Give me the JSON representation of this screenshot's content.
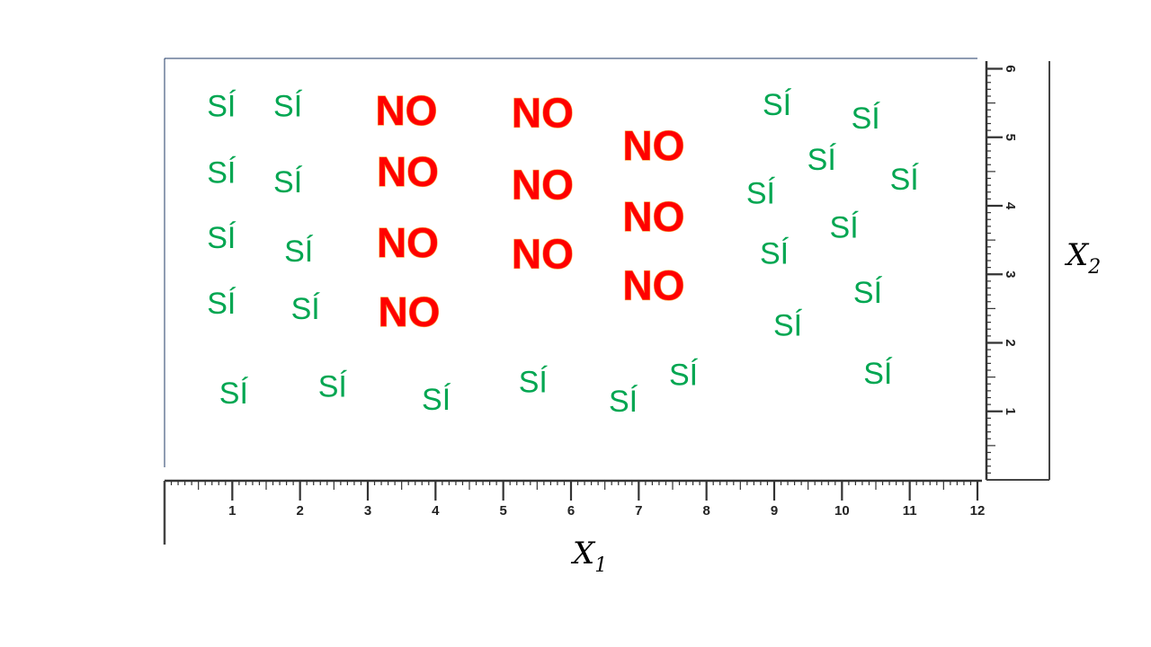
{
  "chart_data": {
    "type": "scatter",
    "title": "",
    "xlabel": "X",
    "xlabel_subscript": "1",
    "ylabel": "X",
    "ylabel_subscript": "2",
    "xlim": [
      0,
      12
    ],
    "ylim": [
      0,
      6
    ],
    "x_ticks": [
      "1",
      "2",
      "3",
      "4",
      "5",
      "6",
      "7",
      "8",
      "9",
      "10",
      "11",
      "12"
    ],
    "y_ticks": [
      "1",
      "2",
      "3",
      "4",
      "5",
      "6"
    ],
    "grid": false,
    "axis_style": "rulers",
    "colors": {
      "SÍ": "#00a651",
      "NO": "#ff0000"
    },
    "series": [
      {
        "name": "SÍ",
        "points": [
          [
            0.84,
            5.45
          ],
          [
            1.82,
            5.45
          ],
          [
            0.84,
            4.48
          ],
          [
            1.82,
            4.34
          ],
          [
            0.84,
            3.53
          ],
          [
            1.98,
            3.33
          ],
          [
            0.84,
            2.57
          ],
          [
            2.08,
            2.49
          ],
          [
            1.02,
            1.26
          ],
          [
            2.48,
            1.36
          ],
          [
            4.01,
            1.17
          ],
          [
            5.44,
            1.42
          ],
          [
            6.77,
            1.14
          ],
          [
            7.66,
            1.53
          ],
          [
            9.04,
            5.47
          ],
          [
            10.35,
            5.27
          ],
          [
            9.7,
            4.67
          ],
          [
            10.92,
            4.38
          ],
          [
            8.8,
            4.18
          ],
          [
            10.03,
            3.68
          ],
          [
            9.0,
            3.3
          ],
          [
            10.38,
            2.73
          ],
          [
            9.2,
            2.25
          ],
          [
            10.53,
            1.55
          ]
        ]
      },
      {
        "name": "NO",
        "points": [
          [
            3.57,
            5.39
          ],
          [
            5.58,
            5.36
          ],
          [
            3.59,
            4.5
          ],
          [
            5.58,
            4.31
          ],
          [
            3.59,
            3.46
          ],
          [
            5.58,
            3.3
          ],
          [
            3.61,
            2.45
          ],
          [
            7.22,
            4.88
          ],
          [
            7.22,
            3.84
          ],
          [
            7.22,
            2.84
          ]
        ]
      }
    ]
  }
}
